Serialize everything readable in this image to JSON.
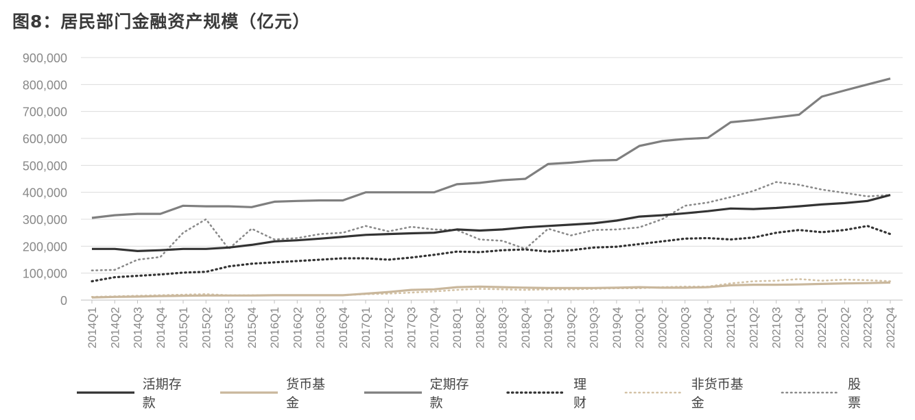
{
  "chart_data": {
    "type": "line",
    "title": "图8：居民部门金融资产规模（亿元）",
    "xlabel": "",
    "ylabel": "",
    "ylim": [
      0,
      900000
    ],
    "y_ticks": [
      0,
      100000,
      200000,
      300000,
      400000,
      500000,
      600000,
      700000,
      800000,
      900000
    ],
    "y_tick_labels": [
      "0",
      "100,000",
      "200,000",
      "300,000",
      "400,000",
      "500,000",
      "600,000",
      "700,000",
      "800,000",
      "900,000"
    ],
    "grid": true,
    "legend_position": "bottom",
    "categories": [
      "2014Q1",
      "2014Q2",
      "2014Q3",
      "2014Q4",
      "2015Q1",
      "2015Q2",
      "2015Q3",
      "2015Q4",
      "2016Q1",
      "2016Q2",
      "2016Q3",
      "2016Q4",
      "2017Q1",
      "2017Q2",
      "2017Q3",
      "2017Q4",
      "2018Q1",
      "2018Q2",
      "2018Q3",
      "2018Q4",
      "2019Q1",
      "2019Q2",
      "2019Q3",
      "2019Q4",
      "2020Q1",
      "2020Q2",
      "2020Q3",
      "2020Q4",
      "2021Q1",
      "2021Q2",
      "2021Q3",
      "2021Q4",
      "2022Q1",
      "2022Q2",
      "2022Q3",
      "2022Q4"
    ],
    "series": [
      {
        "name": "活期存款",
        "color": "#333333",
        "style": "solid",
        "width": 3.2,
        "values": [
          190000,
          190000,
          182000,
          185000,
          190000,
          190000,
          195000,
          205000,
          218000,
          222000,
          228000,
          235000,
          242000,
          245000,
          248000,
          250000,
          262000,
          258000,
          262000,
          270000,
          275000,
          280000,
          285000,
          295000,
          310000,
          315000,
          322000,
          330000,
          340000,
          338000,
          342000,
          348000,
          355000,
          360000,
          368000,
          390000
        ]
      },
      {
        "name": "货币基金",
        "color": "#c9b79c",
        "style": "solid",
        "width": 3.2,
        "values": [
          10000,
          12000,
          13000,
          15000,
          16000,
          17000,
          17000,
          17000,
          18000,
          18000,
          18000,
          18000,
          24000,
          30000,
          38000,
          40000,
          48000,
          50000,
          48000,
          46000,
          45000,
          45000,
          45000,
          46000,
          48000,
          46000,
          46000,
          48000,
          55000,
          57000,
          57000,
          58000,
          60000,
          62000,
          63000,
          65000
        ]
      },
      {
        "name": "定期存款",
        "color": "#7f7f7f",
        "style": "solid",
        "width": 3.2,
        "values": [
          305000,
          315000,
          320000,
          320000,
          350000,
          348000,
          348000,
          345000,
          365000,
          368000,
          370000,
          370000,
          400000,
          400000,
          400000,
          400000,
          430000,
          435000,
          445000,
          450000,
          505000,
          510000,
          518000,
          520000,
          572000,
          590000,
          598000,
          602000,
          660000,
          668000,
          678000,
          688000,
          755000,
          778000,
          800000,
          822000
        ]
      },
      {
        "name": "理财",
        "color": "#333333",
        "style": "dotted",
        "width": 3.2,
        "values": [
          70000,
          85000,
          90000,
          95000,
          102000,
          105000,
          125000,
          135000,
          140000,
          145000,
          150000,
          155000,
          155000,
          150000,
          158000,
          168000,
          180000,
          178000,
          185000,
          188000,
          180000,
          185000,
          195000,
          198000,
          208000,
          218000,
          228000,
          230000,
          225000,
          232000,
          250000,
          260000,
          252000,
          260000,
          275000,
          245000
        ]
      },
      {
        "name": "非货币基金",
        "color": "#d3c2a6",
        "style": "dotted",
        "width": 2.6,
        "values": [
          12000,
          14000,
          16000,
          18000,
          20000,
          22000,
          18000,
          18000,
          18000,
          18000,
          18000,
          18000,
          22000,
          24000,
          28000,
          32000,
          38000,
          42000,
          40000,
          38000,
          40000,
          40000,
          42000,
          44000,
          44000,
          48000,
          50000,
          50000,
          62000,
          70000,
          72000,
          78000,
          72000,
          76000,
          74000,
          70000
        ]
      },
      {
        "name": "股票",
        "color": "#8a8a8a",
        "style": "dotted",
        "width": 2.6,
        "values": [
          110000,
          112000,
          150000,
          160000,
          250000,
          300000,
          190000,
          265000,
          225000,
          230000,
          245000,
          250000,
          275000,
          255000,
          272000,
          262000,
          260000,
          225000,
          220000,
          190000,
          265000,
          240000,
          260000,
          262000,
          270000,
          300000,
          350000,
          362000,
          382000,
          405000,
          438000,
          428000,
          410000,
          398000,
          385000,
          390000
        ]
      }
    ]
  }
}
